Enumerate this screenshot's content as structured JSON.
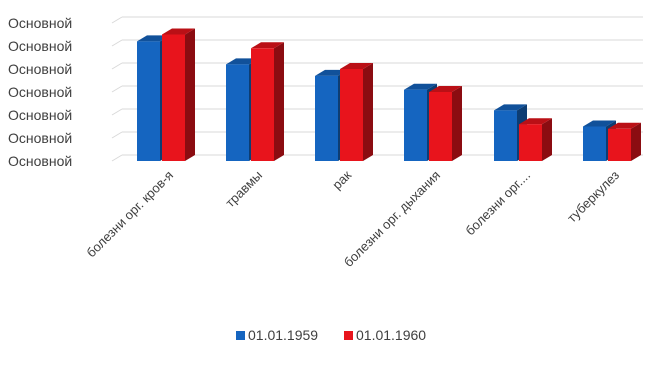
{
  "chart_data": {
    "type": "bar",
    "title": "",
    "xlabel": "",
    "ylabel": "",
    "three_d": true,
    "grid": true,
    "legend_position": "bottom",
    "y_tick_labels": [
      "Основной",
      "Основной",
      "Основной",
      "Основной",
      "Основной",
      "Основной",
      "Основной"
    ],
    "ylim": [
      0,
      6
    ],
    "categories": [
      "болезни орг. кров-я",
      "травмы",
      "рак",
      "болезни орг. дыхания",
      "болезни орг....",
      "туберкулез"
    ],
    "series": [
      {
        "name": "01.01.1959",
        "color": "#1565c0",
        "values": [
          5.2,
          4.2,
          3.7,
          3.1,
          2.2,
          1.5
        ]
      },
      {
        "name": "01.01.1960",
        "color": "#e8141c",
        "values": [
          5.5,
          4.9,
          4.0,
          3.0,
          1.6,
          1.4
        ]
      }
    ]
  }
}
